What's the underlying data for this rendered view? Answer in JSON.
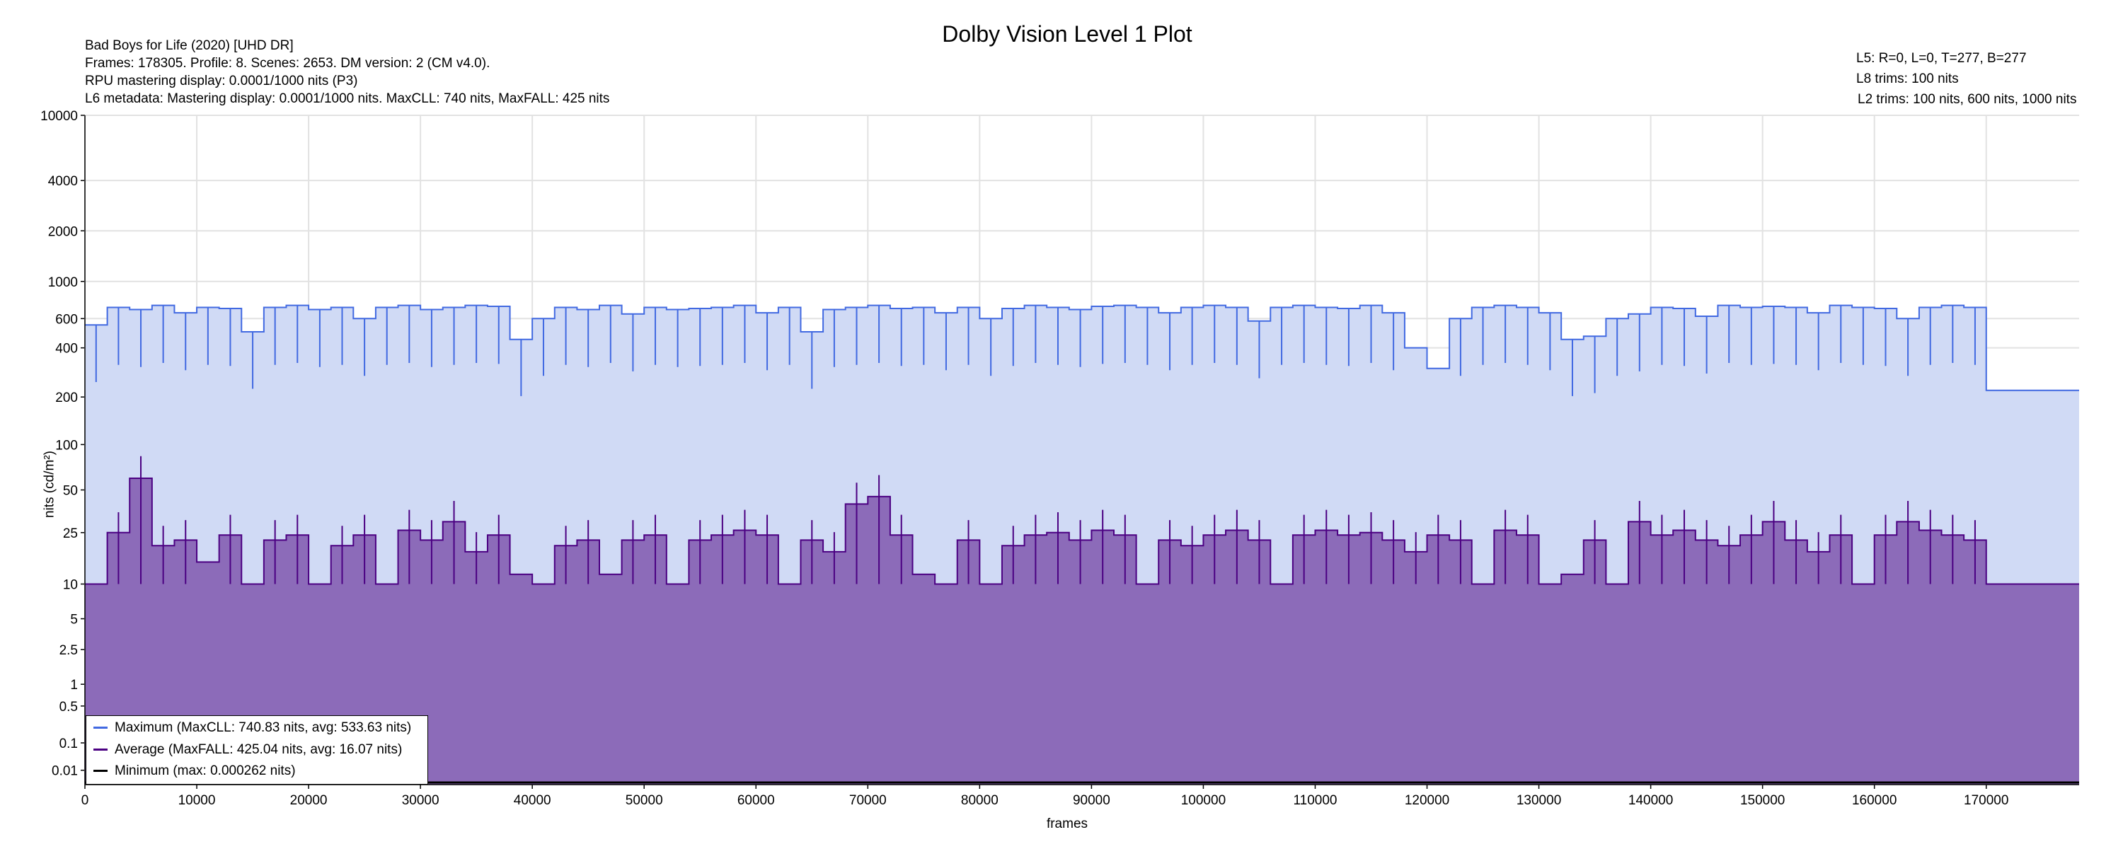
{
  "chart_data": {
    "type": "area",
    "title": "Dolby Vision Level 1 Plot",
    "xlabel": "frames",
    "ylabel": "nits (cd/m²)",
    "yscale": "PQ",
    "xlim": [
      0,
      178305
    ],
    "ylim": [
      0,
      10000
    ],
    "grid": true,
    "legend_placement": "bottom-left",
    "x_ticks": [
      "0",
      "10000",
      "20000",
      "30000",
      "40000",
      "50000",
      "60000",
      "70000",
      "80000",
      "90000",
      "100000",
      "110000",
      "120000",
      "130000",
      "140000",
      "150000",
      "160000",
      "170000"
    ],
    "y_ticks": [
      "0.01",
      "0.1",
      "0.5",
      "1",
      "2.5",
      "5",
      "10",
      "25",
      "50",
      "100",
      "200",
      "400",
      "600",
      "1000",
      "2000",
      "4000",
      "10000"
    ],
    "x_step": 2000,
    "series": [
      {
        "name": "Maximum (MaxCLL: 740.83 nits, avg: 533.63 nits)",
        "color": "#4169e1",
        "fill": "#d0daf5",
        "values": [
          550,
          700,
          680,
          720,
          650,
          700,
          690,
          500,
          700,
          720,
          680,
          700,
          600,
          700,
          720,
          680,
          700,
          720,
          710,
          450,
          600,
          700,
          680,
          720,
          640,
          700,
          680,
          690,
          700,
          720,
          650,
          700,
          500,
          680,
          700,
          720,
          690,
          700,
          650,
          700,
          600,
          690,
          720,
          700,
          680,
          710,
          720,
          700,
          650,
          700,
          720,
          700,
          580,
          700,
          720,
          700,
          690,
          720,
          650,
          400,
          300,
          600,
          700,
          720,
          700,
          650,
          450,
          470,
          600,
          640,
          700,
          690,
          620,
          720,
          700,
          710,
          700,
          650,
          720,
          700,
          690,
          600,
          700,
          720,
          700,
          220,
          220,
          220,
          220,
          220
        ]
      },
      {
        "name": "Average (MaxFALL: 425.04 nits, avg: 16.07 nits)",
        "color": "#4b0082",
        "fill": "#8c6bb9",
        "values": [
          10,
          25,
          60,
          20,
          22,
          15,
          24,
          10,
          22,
          24,
          10,
          20,
          24,
          10,
          26,
          22,
          30,
          18,
          24,
          12,
          10,
          20,
          22,
          12,
          22,
          24,
          10,
          22,
          24,
          26,
          24,
          10,
          22,
          18,
          40,
          45,
          24,
          12,
          10,
          22,
          10,
          20,
          24,
          25,
          22,
          26,
          24,
          10,
          22,
          20,
          24,
          26,
          22,
          10,
          24,
          26,
          24,
          25,
          22,
          18,
          24,
          22,
          10,
          26,
          24,
          10,
          12,
          22,
          10,
          30,
          24,
          26,
          22,
          20,
          24,
          30,
          22,
          18,
          24,
          10,
          24,
          30,
          26,
          24,
          22,
          10,
          10,
          10,
          10,
          10
        ]
      },
      {
        "name": "Minimum (max: 0.000262 nits)",
        "color": "#000000",
        "fill": "#000000",
        "values": [
          0.0001
        ]
      }
    ]
  },
  "header": {
    "line1": "Bad Boys for Life (2020) [UHD DR]",
    "line2": "Frames: 178305. Profile: 8. Scenes: 2653. DM version: 2 (CM v4.0).",
    "line3": "RPU mastering display: 0.0001/1000 nits  (P3)",
    "line4": "L6 metadata: Mastering display: 0.0001/1000 nits. MaxCLL: 740 nits, MaxFALL: 425 nits",
    "right1": "L5: R=0, L=0, T=277, B=277",
    "right2": "L8 trims: 100 nits",
    "right3": "L2 trims: 100 nits, 600 nits, 1000 nits"
  }
}
